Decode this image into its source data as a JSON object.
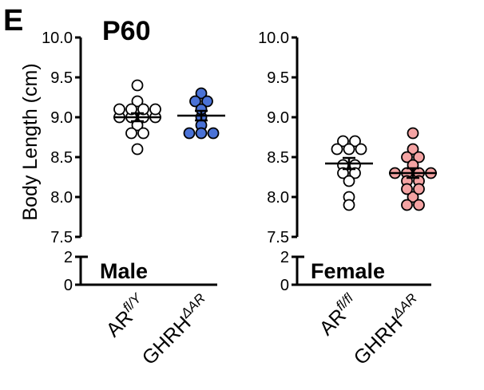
{
  "panel_letter": "E",
  "title": "P60",
  "ylabel": "Body Length (cm)",
  "groups": [
    {
      "label": "Male",
      "categories": [
        {
          "base": "AR",
          "sup": "fl/Y"
        },
        {
          "base": "GHRH",
          "sup": "ΔAR"
        }
      ]
    },
    {
      "label": "Female",
      "categories": [
        {
          "base": "AR",
          "sup": "fl/fl"
        },
        {
          "base": "GHRH",
          "sup": "ΔAR"
        }
      ]
    }
  ],
  "colors": {
    "AR_control_fill": "#ffffff",
    "male_ghrh_fill": "#4a72d6",
    "female_ghrh_fill": "#f4a3a3",
    "marker_stroke": "#000000"
  },
  "chart_data": {
    "type": "scatter",
    "subtype": "dot plot with mean ± SEM",
    "title": "P60",
    "ylabel": "Body Length (cm)",
    "ylim_upper": [
      7.5,
      10.0
    ],
    "ylim_lower": [
      0,
      2
    ],
    "y_ticks_upper": [
      "7.5",
      "8.0",
      "8.5",
      "9.0",
      "9.5",
      "10.0"
    ],
    "y_ticks_lower": [
      "0",
      "2"
    ],
    "axis_break": true,
    "panels": [
      {
        "label": "Male",
        "series": [
          {
            "name": "AR fl/Y",
            "fill": "#ffffff",
            "values": [
              9.4,
              9.2,
              9.1,
              9.1,
              9.1,
              9.1,
              9.0,
              9.0,
              9.0,
              9.0,
              8.9,
              8.8,
              8.8,
              8.6
            ],
            "mean": 9.0,
            "sem": 0.05
          },
          {
            "name": "GHRH ΔAR",
            "fill": "#4a72d6",
            "values": [
              9.3,
              9.2,
              9.2,
              9.1,
              9.0,
              8.9,
              8.8,
              8.8,
              8.8
            ],
            "mean": 9.02,
            "sem": 0.06
          }
        ]
      },
      {
        "label": "Female",
        "series": [
          {
            "name": "AR fl/fl",
            "fill": "#ffffff",
            "values": [
              8.7,
              8.7,
              8.6,
              8.6,
              8.6,
              8.4,
              8.4,
              8.3,
              8.3,
              8.2,
              8.0,
              7.9
            ],
            "mean": 8.42,
            "sem": 0.07
          },
          {
            "name": "GHRH ΔAR",
            "fill": "#f4a3a3",
            "values": [
              8.8,
              8.6,
              8.5,
              8.5,
              8.4,
              8.3,
              8.3,
              8.3,
              8.3,
              8.2,
              8.2,
              8.1,
              8.1,
              8.0,
              7.9,
              7.9
            ],
            "mean": 8.3,
            "sem": 0.06
          }
        ]
      }
    ]
  }
}
